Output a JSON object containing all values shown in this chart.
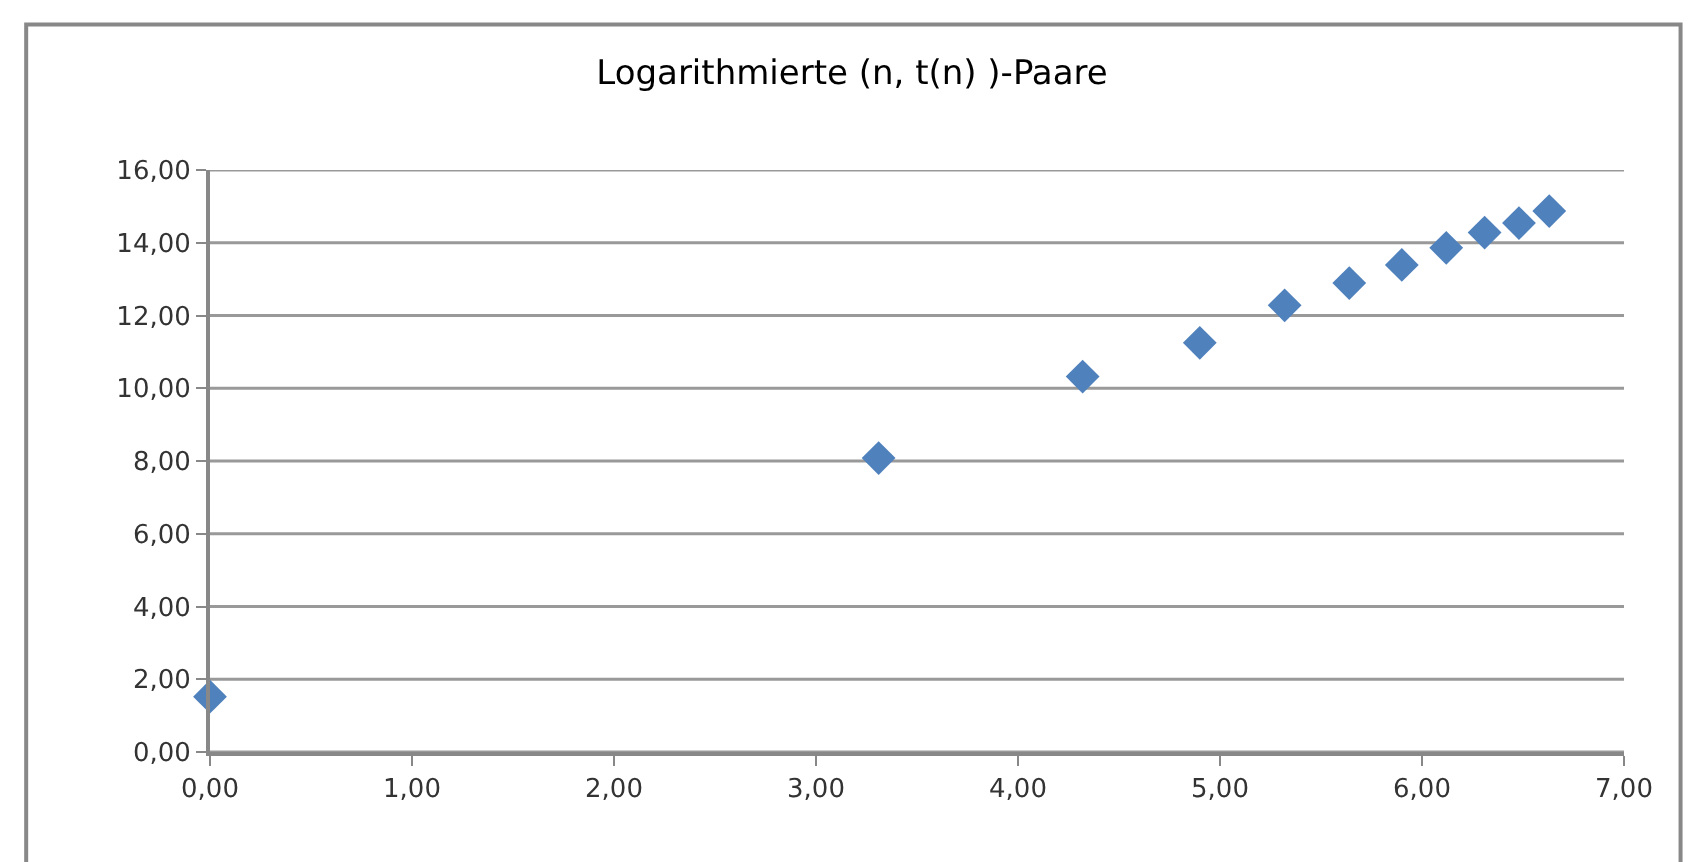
{
  "chart_data": {
    "type": "scatter",
    "title": "Logarithmierte (n, t(n) )-Paare",
    "x": [
      0,
      3.31,
      4.32,
      4.9,
      5.32,
      5.64,
      5.9,
      6.12,
      6.31,
      6.48,
      6.63
    ],
    "series": [
      {
        "color": "#4f81bd",
        "values": [
          1.52,
          8.08,
          10.32,
          11.25,
          12.28,
          12.89,
          13.39,
          13.86,
          14.28,
          14.54,
          14.87
        ]
      }
    ],
    "xlim": [
      0,
      7
    ],
    "ylim": [
      0,
      16
    ],
    "xticks": [
      {
        "value": 0,
        "label": "0,00"
      },
      {
        "value": 1,
        "label": "1,00"
      },
      {
        "value": 2,
        "label": "2,00"
      },
      {
        "value": 3,
        "label": "3,00"
      },
      {
        "value": 4,
        "label": "4,00"
      },
      {
        "value": 5,
        "label": "5,00"
      },
      {
        "value": 6,
        "label": "6,00"
      },
      {
        "value": 7,
        "label": "7,00"
      }
    ],
    "yticks": [
      {
        "value": 0,
        "label": "0,00"
      },
      {
        "value": 2,
        "label": "2,00"
      },
      {
        "value": 4,
        "label": "4,00"
      },
      {
        "value": 6,
        "label": "6,00"
      },
      {
        "value": 8,
        "label": "8,00"
      },
      {
        "value": 10,
        "label": "10,00"
      },
      {
        "value": 12,
        "label": "12,00"
      },
      {
        "value": 14,
        "label": "14,00"
      },
      {
        "value": 16,
        "label": "16,00"
      }
    ],
    "grid": "y",
    "marker": "diamond"
  }
}
